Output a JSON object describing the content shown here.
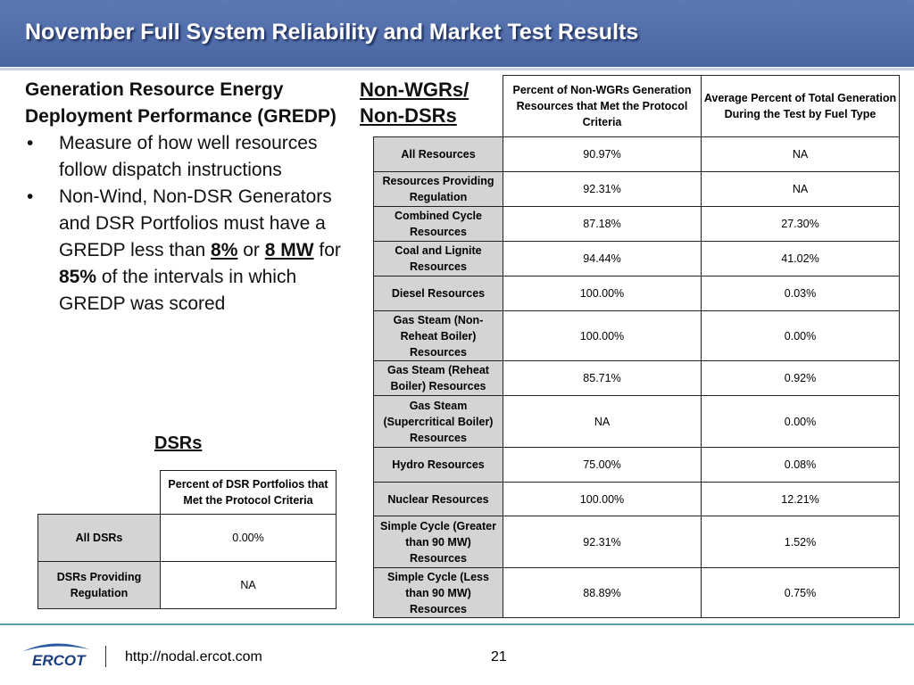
{
  "header": {
    "title": "November Full System Reliability and Market Test Results"
  },
  "left": {
    "heading": "Generation Resource Energy Deployment Performance (GREDP)",
    "bullets": [
      [
        {
          "text": "Measure of how well resources follow dispatch instructions"
        }
      ],
      [
        {
          "text": "Non-Wind, Non-DSR Generators and DSR Portfolios must have a GREDP less than "
        },
        {
          "text": "8%",
          "bold": true,
          "underline": true
        },
        {
          "text": " or "
        },
        {
          "text": "8 MW",
          "bold": true,
          "underline": true
        },
        {
          "text": " for "
        },
        {
          "text": "85%",
          "bold": true
        },
        {
          "text": " of the intervals in which GREDP was scored"
        }
      ]
    ]
  },
  "non_wgr_table": {
    "label": "Non-WGRs/ Non-DSRs",
    "columns": [
      "Percent of Non-WGRs Generation Resources that Met the Protocol Criteria",
      "Average Percent of Total Generation During the Test by Fuel Type"
    ],
    "rows": [
      [
        "All Resources",
        "90.97%",
        "NA"
      ],
      [
        "Resources Providing Regulation",
        "92.31%",
        "NA"
      ],
      [
        "Combined Cycle Resources",
        "87.18%",
        "27.30%"
      ],
      [
        "Coal and Lignite Resources",
        "94.44%",
        "41.02%"
      ],
      [
        "Diesel Resources",
        "100.00%",
        "0.03%"
      ],
      [
        "Gas Steam (Non-Reheat Boiler) Resources",
        "100.00%",
        "0.00%"
      ],
      [
        "Gas Steam (Reheat Boiler) Resources",
        "85.71%",
        "0.92%"
      ],
      [
        "Gas Steam (Supercritical Boiler) Resources",
        "NA",
        "0.00%"
      ],
      [
        "Hydro Resources",
        "75.00%",
        "0.08%"
      ],
      [
        "Nuclear Resources",
        "100.00%",
        "12.21%"
      ],
      [
        "Simple Cycle (Greater than 90 MW) Resources",
        "92.31%",
        "1.52%"
      ],
      [
        "Simple Cycle (Less than 90 MW) Resources",
        "88.89%",
        "0.75%"
      ]
    ]
  },
  "dsr_table": {
    "label": "DSRs",
    "columns": [
      "Percent of DSR Portfolios that Met the Protocol Criteria"
    ],
    "rows": [
      [
        "All DSRs",
        "0.00%"
      ],
      [
        "DSRs Providing Regulation",
        "NA"
      ]
    ]
  },
  "footer": {
    "logo": "ERCOT",
    "url": "http://nodal.ercot.com",
    "page": "21"
  }
}
